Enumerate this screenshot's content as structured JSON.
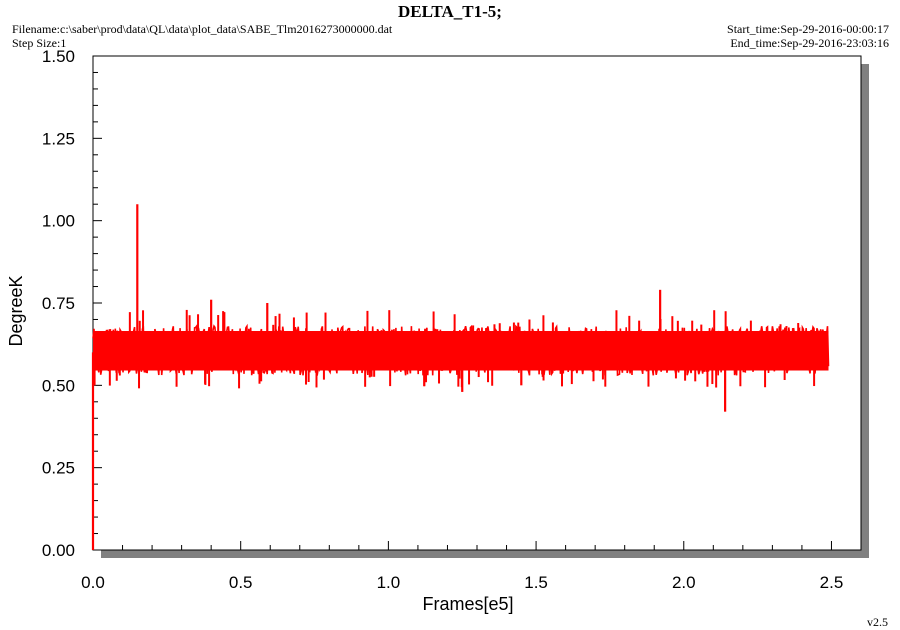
{
  "header": {
    "title": "DELTA_T1-5;",
    "filename": "Filename:c:\\saber\\prod\\data\\QL\\data\\plot_data\\SABE_Tlm2016273000000.dat",
    "step_size": "Step Size:1",
    "start_time": "Start_time:Sep-29-2016-00:00:17",
    "end_time": "End_time:Sep-29-2016-23:03:16"
  },
  "footer": {
    "version": "v2.5"
  },
  "colors": {
    "series": "#ff0000",
    "frame_shadow": "#808080"
  },
  "chart_data": {
    "type": "line",
    "title": "DELTA_T1-5;",
    "xlabel": "Frames[e5]",
    "ylabel": "DegreeK",
    "xlim": [
      0,
      2.6
    ],
    "ylim": [
      0,
      1.5
    ],
    "xticks": [
      "0.0",
      "0.5",
      "1.0",
      "1.5",
      "2.0",
      "2.5"
    ],
    "yticks": [
      "0.00",
      "0.25",
      "0.50",
      "0.75",
      "1.00",
      "1.25",
      "1.50"
    ],
    "grid": false,
    "series": [
      {
        "band_x_range": [
          0.0,
          2.49
        ],
        "typical_low": 0.53,
        "typical_high": 0.68,
        "x": [
          0.0,
          0.005,
          0.01,
          0.15,
          0.16,
          0.4,
          0.59,
          1.25,
          1.45,
          1.92,
          2.14,
          2.49
        ],
        "y": [
          0.0,
          0.5,
          0.64,
          1.05,
          0.6,
          0.76,
          0.75,
          0.48,
          0.5,
          0.79,
          0.42,
          0.6
        ]
      }
    ]
  }
}
